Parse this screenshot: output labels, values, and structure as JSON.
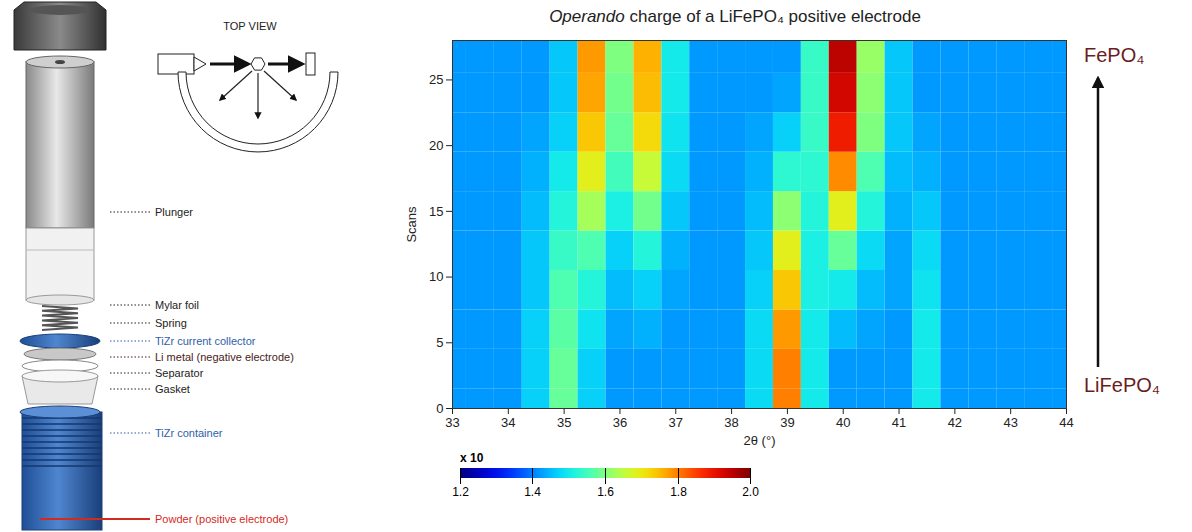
{
  "diagram": {
    "top_view": "TOP VIEW",
    "parts": [
      {
        "label": "Plunger"
      },
      {
        "label": "Mylar foil"
      },
      {
        "label": "Spring"
      },
      {
        "label": "TiZr current collector",
        "color": "#2f5fa8"
      },
      {
        "label": "Li metal (negative electrode)",
        "color": "#4a1a1a"
      },
      {
        "label": "Separator"
      },
      {
        "label": "Gasket"
      },
      {
        "label": "TiZr container",
        "color": "#2f5fa8"
      },
      {
        "label": "Powder (positive electrode)",
        "color": "#d42a1e"
      }
    ]
  },
  "chart_data": {
    "type": "heatmap",
    "title": "Operando charge of a LiFePO₄ positive electrode",
    "x_label": "2θ (°)",
    "y_label": "Scans",
    "color": "jet",
    "grid": false,
    "x": [
      33,
      33.5,
      34,
      34.5,
      35,
      35.5,
      36,
      36.5,
      37,
      37.5,
      38,
      38.5,
      39,
      39.5,
      40,
      40.5,
      41,
      41.5,
      42,
      42.5,
      43,
      43.5,
      44
    ],
    "y": [
      0,
      3,
      6,
      9,
      12,
      15,
      18,
      21,
      24,
      27
    ],
    "values": [
      [
        1.42,
        1.42,
        1.42,
        1.47,
        1.58,
        1.47,
        1.42,
        1.42,
        1.42,
        1.42,
        1.42,
        1.48,
        1.8,
        1.5,
        1.42,
        1.42,
        1.42,
        1.5,
        1.42,
        1.42,
        1.42,
        1.42,
        1.42
      ],
      [
        1.42,
        1.42,
        1.42,
        1.47,
        1.58,
        1.47,
        1.42,
        1.42,
        1.42,
        1.42,
        1.42,
        1.48,
        1.8,
        1.5,
        1.42,
        1.42,
        1.42,
        1.5,
        1.42,
        1.42,
        1.42,
        1.42,
        1.42
      ],
      [
        1.42,
        1.42,
        1.42,
        1.47,
        1.57,
        1.49,
        1.43,
        1.44,
        1.42,
        1.42,
        1.42,
        1.48,
        1.78,
        1.5,
        1.45,
        1.43,
        1.42,
        1.5,
        1.42,
        1.42,
        1.42,
        1.42,
        1.42
      ],
      [
        1.42,
        1.42,
        1.42,
        1.46,
        1.56,
        1.52,
        1.45,
        1.47,
        1.43,
        1.42,
        1.42,
        1.47,
        1.74,
        1.51,
        1.5,
        1.45,
        1.43,
        1.49,
        1.42,
        1.42,
        1.42,
        1.42,
        1.42
      ],
      [
        1.42,
        1.42,
        1.42,
        1.46,
        1.54,
        1.56,
        1.47,
        1.52,
        1.44,
        1.42,
        1.42,
        1.46,
        1.69,
        1.51,
        1.58,
        1.48,
        1.43,
        1.48,
        1.42,
        1.42,
        1.42,
        1.42,
        1.42
      ],
      [
        1.42,
        1.42,
        1.42,
        1.45,
        1.52,
        1.63,
        1.51,
        1.59,
        1.46,
        1.42,
        1.42,
        1.45,
        1.61,
        1.52,
        1.69,
        1.52,
        1.44,
        1.46,
        1.42,
        1.42,
        1.42,
        1.42,
        1.42
      ],
      [
        1.42,
        1.42,
        1.42,
        1.44,
        1.5,
        1.69,
        1.55,
        1.66,
        1.48,
        1.42,
        1.42,
        1.44,
        1.53,
        1.53,
        1.79,
        1.56,
        1.45,
        1.44,
        1.42,
        1.42,
        1.42,
        1.42,
        1.42
      ],
      [
        1.42,
        1.42,
        1.42,
        1.43,
        1.47,
        1.74,
        1.58,
        1.72,
        1.49,
        1.42,
        1.42,
        1.43,
        1.47,
        1.54,
        1.89,
        1.6,
        1.46,
        1.43,
        1.42,
        1.42,
        1.42,
        1.42,
        1.42
      ],
      [
        1.42,
        1.42,
        1.42,
        1.42,
        1.46,
        1.77,
        1.59,
        1.75,
        1.5,
        1.42,
        1.42,
        1.42,
        1.43,
        1.54,
        1.93,
        1.61,
        1.46,
        1.42,
        1.42,
        1.42,
        1.42,
        1.42,
        1.42
      ],
      [
        1.42,
        1.42,
        1.42,
        1.42,
        1.46,
        1.78,
        1.6,
        1.76,
        1.5,
        1.42,
        1.42,
        1.42,
        1.42,
        1.54,
        1.95,
        1.62,
        1.46,
        1.42,
        1.42,
        1.42,
        1.42,
        1.42,
        1.42
      ]
    ],
    "xlim": [
      33,
      44
    ],
    "xticks": [
      33,
      34,
      35,
      36,
      37,
      38,
      39,
      40,
      41,
      42,
      43,
      44
    ],
    "ylim": [
      0,
      28
    ],
    "yticks": [
      0,
      5,
      10,
      15,
      20,
      25
    ],
    "colorbar": {
      "lim": [
        1.2,
        2
      ],
      "ticks": [
        1.2,
        1.4,
        1.6,
        1.8,
        2
      ],
      "label": "x 10"
    },
    "annotations": [
      {
        "text": "FePO₄"
      },
      {
        "text": "LiFePO₄"
      }
    ]
  }
}
